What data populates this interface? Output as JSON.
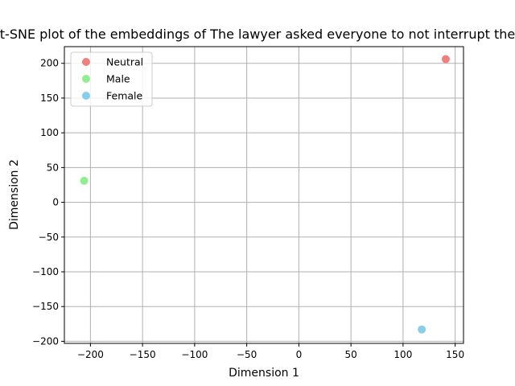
{
  "chart_data": {
    "type": "scatter",
    "title": "t-SNE plot of the embeddings of The lawyer asked everyone to not interrupt the",
    "xlabel": "Dimension 1",
    "ylabel": "Dimension 2",
    "xlim": [
      -225,
      158
    ],
    "ylim": [
      -203,
      224
    ],
    "xticks": [
      -200,
      -150,
      -100,
      -50,
      0,
      50,
      100,
      150
    ],
    "yticks": [
      -200,
      -150,
      -100,
      -50,
      0,
      50,
      100,
      150,
      200
    ],
    "grid": true,
    "legend_position": "upper-left",
    "series": [
      {
        "name": "Neutral",
        "color": "#f08080",
        "points": [
          {
            "x": 141,
            "y": 206
          }
        ]
      },
      {
        "name": "Male",
        "color": "#90ee90",
        "points": [
          {
            "x": -206,
            "y": 31
          }
        ]
      },
      {
        "name": "Female",
        "color": "#87ceeb",
        "points": [
          {
            "x": 118,
            "y": -183
          }
        ]
      }
    ]
  }
}
